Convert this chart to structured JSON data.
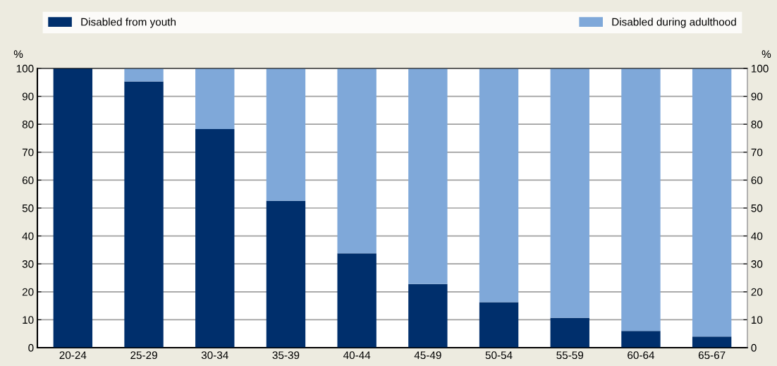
{
  "chart_data": {
    "type": "bar",
    "stacked": true,
    "categories": [
      "20-24",
      "25-29",
      "30-34",
      "35-39",
      "40-44",
      "45-49",
      "50-54",
      "55-59",
      "60-64",
      "65-67"
    ],
    "series": [
      {
        "name": "Disabled from youth",
        "color": "#002f6c",
        "values": [
          100,
          95.3,
          78.3,
          52.6,
          33.8,
          22.8,
          16.3,
          10.7,
          6.0,
          4.0
        ]
      },
      {
        "name": "Disabled during adulthood",
        "color": "#7fa8d9",
        "values": [
          0,
          4.7,
          21.7,
          47.4,
          66.2,
          77.2,
          83.7,
          89.3,
          94.0,
          96.0
        ]
      }
    ],
    "ylabel": "%",
    "y2label": "%",
    "ylim": [
      0,
      100
    ],
    "yticks": [
      0,
      10,
      20,
      30,
      40,
      50,
      60,
      70,
      80,
      90,
      100
    ],
    "y2lim": [
      0,
      100
    ],
    "y2ticks": [
      0,
      10,
      20,
      30,
      40,
      50,
      60,
      70,
      80,
      90,
      100
    ],
    "grid": true,
    "legend": "top"
  }
}
